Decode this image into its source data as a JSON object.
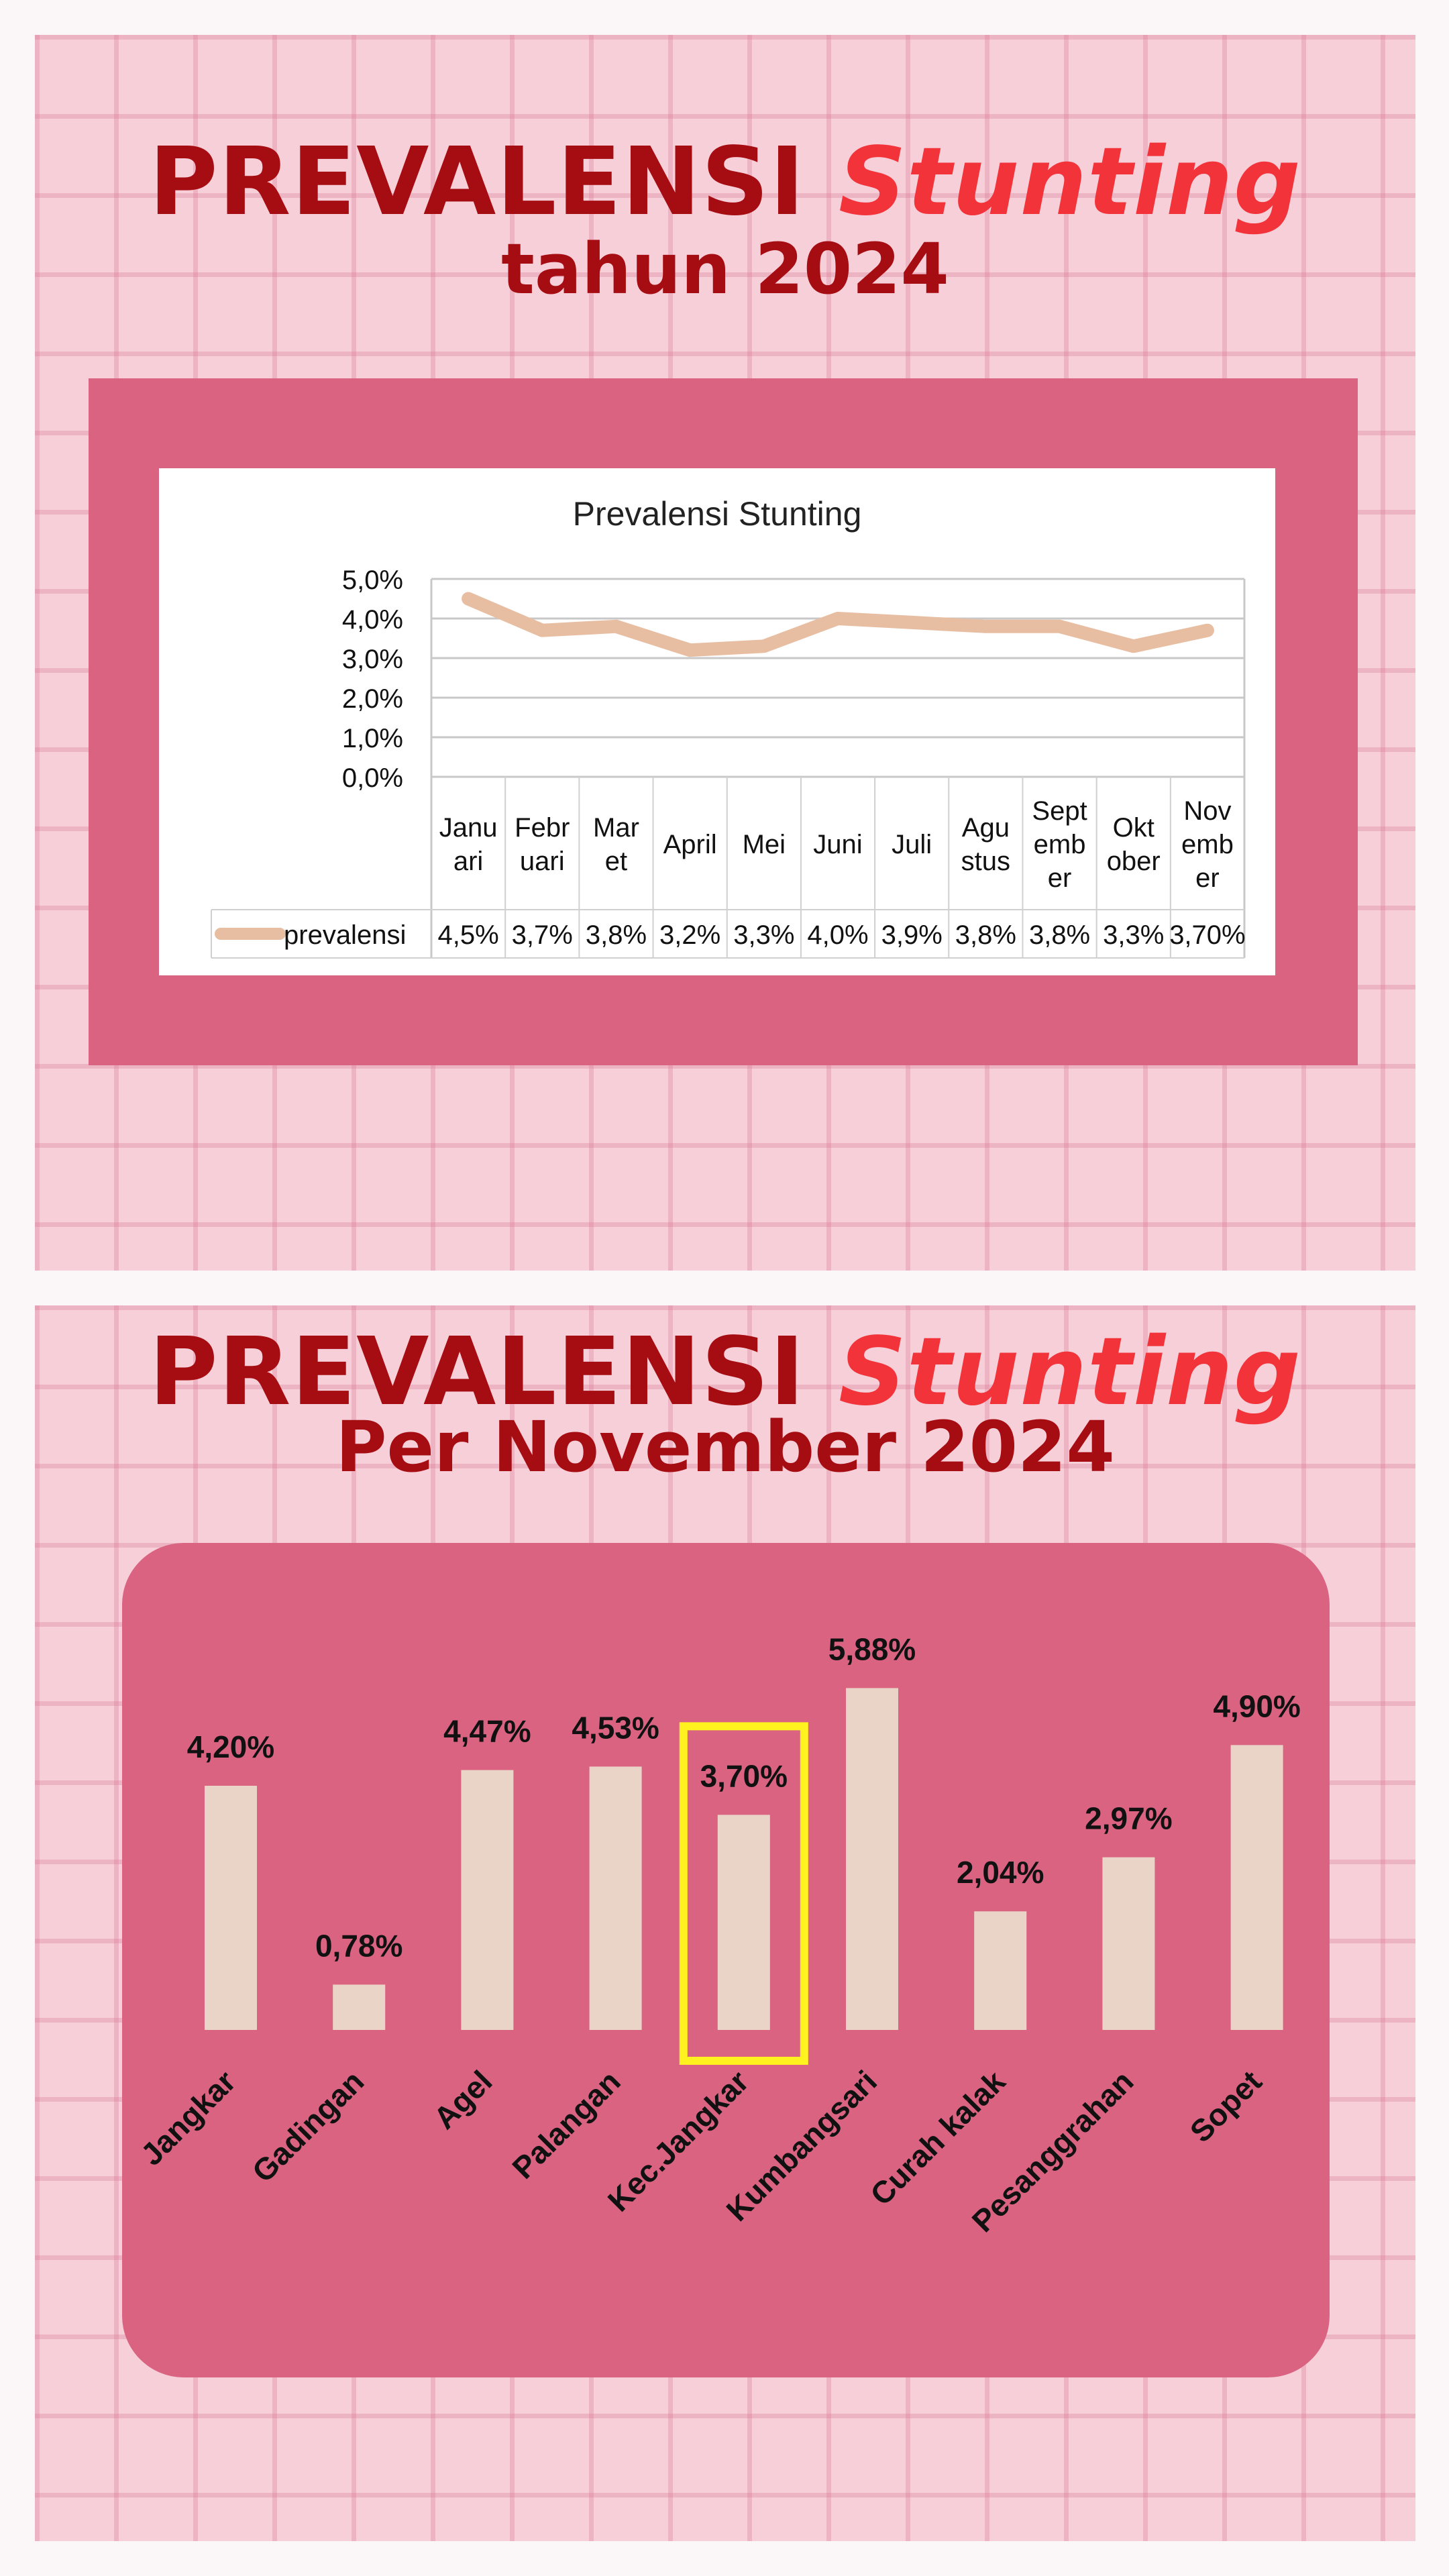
{
  "slide1": {
    "title_main": "PREVALENSI",
    "title_accent": "Stunting",
    "subtitle": "tahun 2024"
  },
  "slide2": {
    "title_main": "PREVALENSI",
    "title_accent": "Stunting",
    "subtitle": "Per November 2024"
  },
  "colors": {
    "title_dark": "#a50d12",
    "title_accent": "#f2333a",
    "frame": "#d96381",
    "line": "#e8bea3",
    "bar": "#ead4c7",
    "highlight": "#fff21e"
  },
  "chart_data": [
    {
      "type": "line",
      "title": "Prevalensi Stunting",
      "categories": [
        [
          "Janu",
          "ari"
        ],
        [
          "Febr",
          "uari"
        ],
        [
          "Mar",
          "et"
        ],
        [
          "April"
        ],
        [
          "Mei"
        ],
        [
          "Juni"
        ],
        [
          "Juli"
        ],
        [
          "Agu",
          "stus"
        ],
        [
          "Sept",
          "emb",
          "er"
        ],
        [
          "Okt",
          "ober"
        ],
        [
          "Nov",
          "emb",
          "er"
        ]
      ],
      "series": [
        {
          "name": "prevalensi",
          "values": [
            4.5,
            3.7,
            3.8,
            3.2,
            3.3,
            4.0,
            3.9,
            3.8,
            3.8,
            3.3,
            3.7
          ],
          "labels": [
            "4,5%",
            "3,7%",
            "3,8%",
            "3,2%",
            "3,3%",
            "4,0%",
            "3,9%",
            "3,8%",
            "3,8%",
            "3,3%",
            "3,70%"
          ]
        }
      ],
      "y_ticks": [
        "0,0%",
        "1,0%",
        "2,0%",
        "3,0%",
        "4,0%",
        "5,0%"
      ],
      "ylim": [
        0,
        5
      ],
      "grid": true,
      "legend": "data-table-left"
    },
    {
      "type": "bar",
      "categories": [
        "Jangkar",
        "Gadingan",
        "Agel",
        "Palangan",
        "Kec.Jangkar",
        "Kumbangsari",
        "Curah kalak",
        "Pesanggrahan",
        "Sopet"
      ],
      "values": [
        4.2,
        0.78,
        4.47,
        4.53,
        3.7,
        5.88,
        2.04,
        2.97,
        4.9
      ],
      "labels": [
        "4,20%",
        "0,78%",
        "4,47%",
        "4,53%",
        "3,70%",
        "5,88%",
        "2,04%",
        "2,97%",
        "4,90%"
      ],
      "highlight": "Kec.Jangkar",
      "ylim": [
        0,
        6
      ]
    }
  ]
}
